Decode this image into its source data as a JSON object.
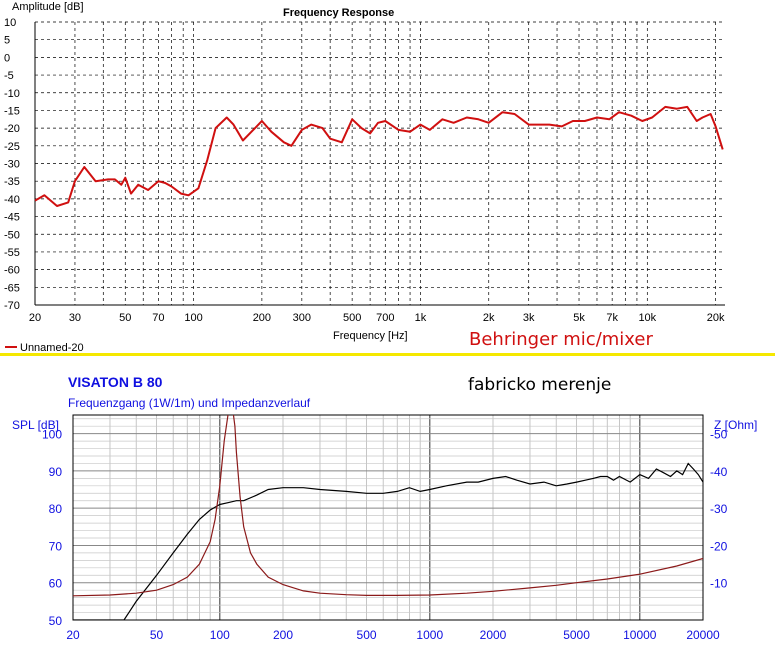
{
  "chart_data": [
    {
      "type": "line",
      "title": "Frequency Response",
      "ylabel": "Amplitude [dB]",
      "xlabel": "Frequency [Hz]",
      "xscale": "log",
      "xlim": [
        20,
        22000
      ],
      "ylim": [
        -70,
        10
      ],
      "grid": true,
      "x_ticks": [
        20,
        30,
        50,
        70,
        100,
        200,
        300,
        500,
        700,
        1000,
        2000,
        3000,
        5000,
        7000,
        10000,
        20000
      ],
      "x_tick_labels": [
        "20",
        "30",
        "50",
        "70",
        "100",
        "200",
        "300",
        "500",
        "700",
        "1k",
        "2k",
        "3k",
        "5k",
        "7k",
        "10k",
        "20k"
      ],
      "y_ticks": [
        10,
        5,
        0,
        -5,
        -10,
        -15,
        -20,
        -25,
        -30,
        -35,
        -40,
        -45,
        -50,
        -55,
        -60,
        -65,
        -70
      ],
      "legend": "bottom-left",
      "series": [
        {
          "name": "Unnamed-20",
          "color": "#d01010",
          "x": [
            20,
            22,
            25,
            28,
            30,
            33,
            37,
            42,
            45,
            48,
            50,
            53,
            57,
            63,
            70,
            75,
            80,
            88,
            95,
            105,
            115,
            125,
            140,
            150,
            165,
            180,
            200,
            220,
            250,
            270,
            300,
            330,
            370,
            400,
            450,
            500,
            550,
            600,
            650,
            700,
            800,
            900,
            1000,
            1100,
            1250,
            1400,
            1600,
            1800,
            2000,
            2300,
            2600,
            3000,
            3300,
            3700,
            4200,
            4700,
            5300,
            6000,
            6800,
            7500,
            8500,
            9500,
            10500,
            12000,
            13500,
            15000,
            16500,
            17500,
            19000,
            20000,
            21500
          ],
          "y": [
            -40.5,
            -39,
            -42,
            -41,
            -35,
            -31,
            -35,
            -34.5,
            -34.5,
            -36,
            -34,
            -38.5,
            -36,
            -37.5,
            -35,
            -35.5,
            -36.5,
            -38.5,
            -39,
            -37,
            -29,
            -20,
            -17,
            -19,
            -23.5,
            -21,
            -18,
            -21,
            -24,
            -25,
            -20.5,
            -19,
            -20,
            -23,
            -24,
            -17.5,
            -20,
            -21.5,
            -18.5,
            -18,
            -20.5,
            -21,
            -19,
            -20.5,
            -17.5,
            -18.5,
            -17,
            -17.5,
            -18.5,
            -15.5,
            -16,
            -19,
            -19,
            -19,
            -19.5,
            -18,
            -18,
            -17,
            -17.5,
            -15.5,
            -16.5,
            -18,
            -17,
            -14,
            -14.5,
            -14,
            -18,
            -17,
            -16,
            -19.5,
            -26
          ]
        }
      ],
      "annotation": "Behringer mic/mixer"
    },
    {
      "type": "line",
      "title": "VISATON B 80",
      "subtitle": "Frequenzgang (1W/1m) und Impedanzverlauf",
      "ylabel": "SPL [dB]",
      "ylabel_right": "Z [Ohm]",
      "xscale": "log",
      "xlim": [
        20,
        20000
      ],
      "ylim": [
        50,
        105
      ],
      "ylim_right": [
        0,
        55
      ],
      "grid": true,
      "x_ticks": [
        20,
        50,
        100,
        200,
        500,
        1000,
        2000,
        5000,
        10000,
        20000
      ],
      "x_tick_labels": [
        "20",
        "50",
        "100",
        "200",
        "500",
        "1000",
        "2000",
        "5000",
        "10000",
        "20000"
      ],
      "y_ticks": [
        50,
        60,
        70,
        80,
        90,
        100
      ],
      "y_ticks_right": [
        "10",
        "20",
        "30",
        "40",
        "50"
      ],
      "annotation": "fabricko merenje",
      "series": [
        {
          "name": "SPL",
          "color": "#000000",
          "x": [
            20,
            25,
            30,
            35,
            40,
            50,
            60,
            70,
            80,
            90,
            100,
            110,
            120,
            130,
            150,
            170,
            200,
            250,
            300,
            400,
            500,
            600,
            700,
            800,
            900,
            1000,
            1200,
            1500,
            1700,
            2000,
            2300,
            2600,
            3000,
            3500,
            4000,
            4500,
            5000,
            5500,
            6000,
            6500,
            7000,
            7500,
            8000,
            9000,
            10000,
            11000,
            12000,
            13000,
            14000,
            15000,
            16000,
            17000,
            18000,
            19000,
            20000
          ],
          "y": [
            50,
            50,
            50,
            50,
            55,
            62,
            68,
            73,
            77,
            79.5,
            81,
            81.5,
            82,
            82,
            83.5,
            85,
            85.5,
            85.5,
            85,
            84.5,
            84,
            84,
            84.5,
            85.5,
            84.5,
            85,
            86,
            87,
            87,
            88,
            88.5,
            87.5,
            86.5,
            87,
            86,
            86.5,
            87,
            87.5,
            88,
            88.5,
            88.5,
            87.5,
            88.5,
            87,
            89,
            88,
            90.5,
            89.5,
            88.5,
            90,
            89,
            92,
            90.5,
            89,
            87
          ]
        },
        {
          "name": "Impedance",
          "color": "#8b1a1a",
          "x": [
            20,
            30,
            40,
            50,
            60,
            70,
            80,
            90,
            95,
            100,
            105,
            110,
            113,
            115,
            118,
            120,
            125,
            130,
            140,
            150,
            170,
            200,
            250,
            300,
            400,
            500,
            700,
            1000,
            1500,
            2000,
            3000,
            4000,
            5000,
            7000,
            10000,
            15000,
            20000
          ],
          "y": [
            6.5,
            6.7,
            7.2,
            8,
            9.5,
            11.5,
            15,
            21,
            27,
            36,
            48,
            56,
            57,
            57,
            52,
            45,
            33,
            25,
            18,
            15,
            11.5,
            9.5,
            7.8,
            7.2,
            6.8,
            6.6,
            6.6,
            6.7,
            7.2,
            7.7,
            8.6,
            9.3,
            10,
            11,
            12.3,
            14.5,
            16.5
          ]
        }
      ]
    }
  ]
}
